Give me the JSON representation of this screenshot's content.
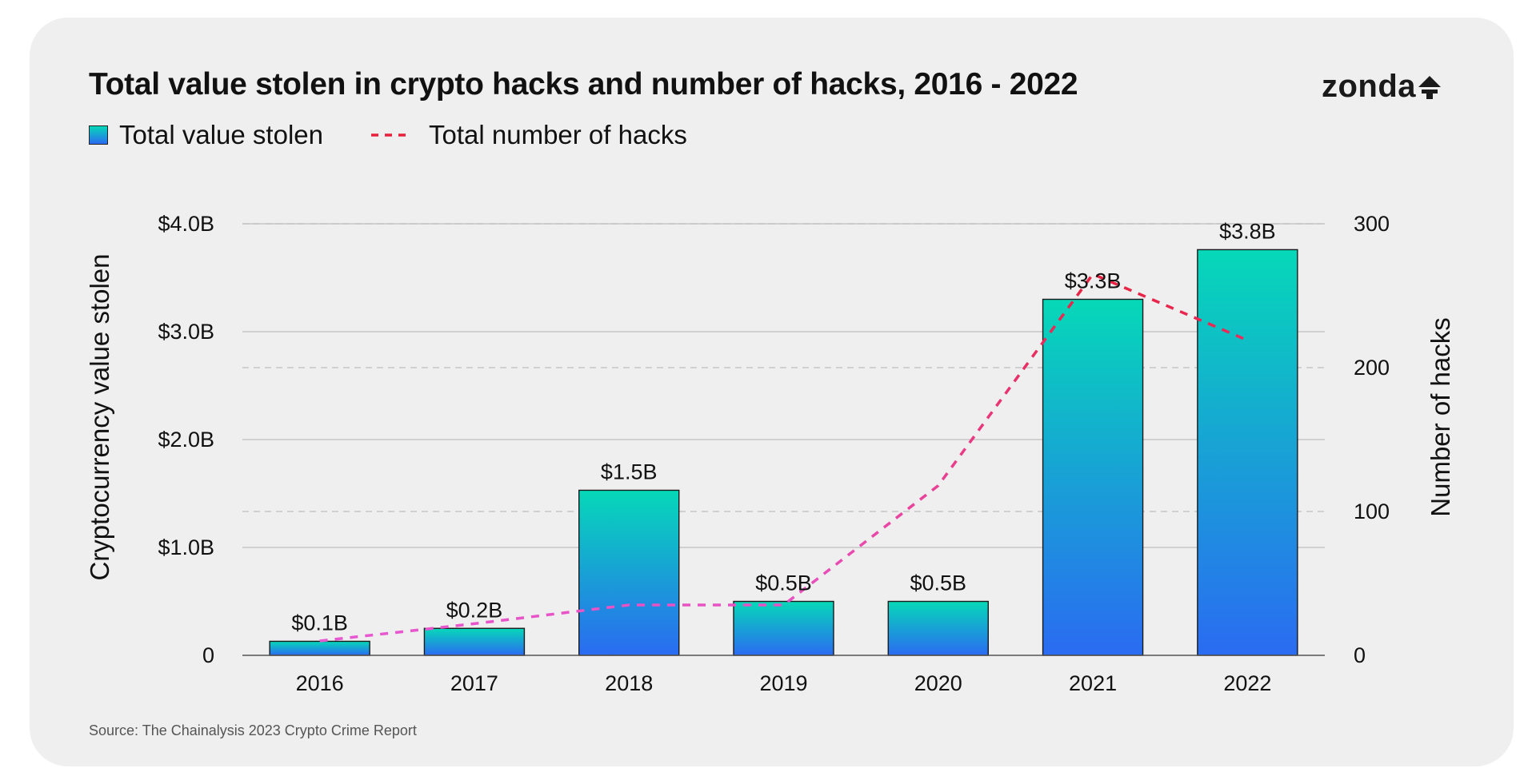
{
  "title": "Total value stolen in crypto hacks and number of hacks, 2016 - 2022",
  "brand": {
    "name": "zonda"
  },
  "legend": {
    "bars_label": "Total value stolen",
    "line_label": "Total number of hacks"
  },
  "source": "Source: The Chainalysis 2023 Crypto Crime Report",
  "colors": {
    "bar_top": "#06d8b8",
    "bar_bottom": "#2a6bf2",
    "line_low": "#e85ad8",
    "line_high": "#e8203c",
    "background": "#efefef"
  },
  "chart_data": {
    "type": "bar",
    "categories": [
      "2016",
      "2017",
      "2018",
      "2019",
      "2020",
      "2021",
      "2022"
    ],
    "values": [
      0.13,
      0.25,
      1.53,
      0.5,
      0.5,
      3.3,
      3.76
    ],
    "value_labels": [
      "$0.1B",
      "$0.2B",
      "$1.5B",
      "$0.5B",
      "$0.5B",
      "$3.3B",
      "$3.8B"
    ],
    "ylabel": "Cryptocurrency value stolen",
    "ylim": [
      0,
      4.0
    ],
    "yticks": [
      0,
      1.0,
      2.0,
      3.0,
      4.0
    ],
    "ytick_labels": [
      "0",
      "$1.0B",
      "$2.0B",
      "$3.0B",
      "$4.0B"
    ],
    "y2label": "Number of hacks",
    "y2lim": [
      0,
      300
    ],
    "y2ticks": [
      0,
      100,
      200,
      300
    ],
    "y2tick_labels": [
      "0",
      "100",
      "200",
      "300"
    ],
    "line_series": {
      "name": "Total number of hacks",
      "style": "dashed",
      "values": [
        10,
        22,
        35,
        35,
        118,
        265,
        219
      ]
    },
    "grid": true,
    "legend_position": "top-left"
  }
}
